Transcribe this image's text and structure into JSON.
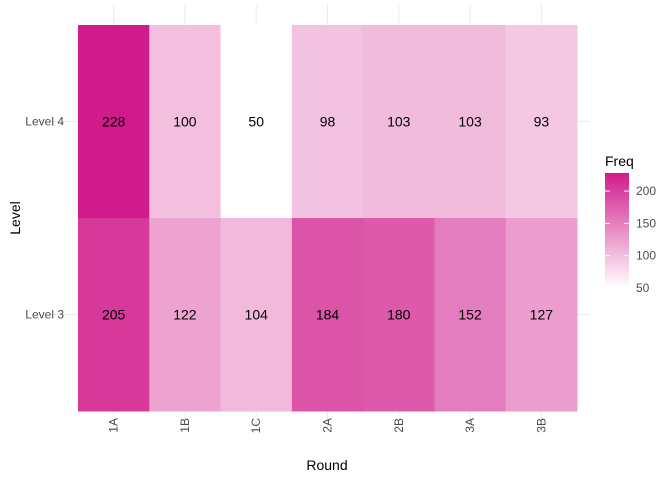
{
  "chart_data": {
    "type": "heatmap",
    "x_categories": [
      "1A",
      "1B",
      "1C",
      "2A",
      "2B",
      "3A",
      "3B"
    ],
    "y_categories": [
      "Level 3",
      "Level 4"
    ],
    "cells": [
      {
        "x": "1A",
        "y": "Level 4",
        "value": 228
      },
      {
        "x": "1B",
        "y": "Level 4",
        "value": 100
      },
      {
        "x": "1C",
        "y": "Level 4",
        "value": 50
      },
      {
        "x": "2A",
        "y": "Level 4",
        "value": 98
      },
      {
        "x": "2B",
        "y": "Level 4",
        "value": 103
      },
      {
        "x": "3A",
        "y": "Level 4",
        "value": 103
      },
      {
        "x": "3B",
        "y": "Level 4",
        "value": 93
      },
      {
        "x": "1A",
        "y": "Level 3",
        "value": 205
      },
      {
        "x": "1B",
        "y": "Level 3",
        "value": 122
      },
      {
        "x": "1C",
        "y": "Level 3",
        "value": 104
      },
      {
        "x": "2A",
        "y": "Level 3",
        "value": 184
      },
      {
        "x": "2B",
        "y": "Level 3",
        "value": 180
      },
      {
        "x": "3A",
        "y": "Level 3",
        "value": 152
      },
      {
        "x": "3B",
        "y": "Level 3",
        "value": 127
      }
    ],
    "xlabel": "Round",
    "ylabel": "Level",
    "legend": {
      "title": "Freq",
      "ticks": [
        50,
        100,
        150,
        200
      ],
      "range": [
        50,
        228
      ],
      "placement": "right"
    },
    "colors": {
      "low": "#ffffff",
      "high": "#d01c8b"
    },
    "grid": true
  }
}
